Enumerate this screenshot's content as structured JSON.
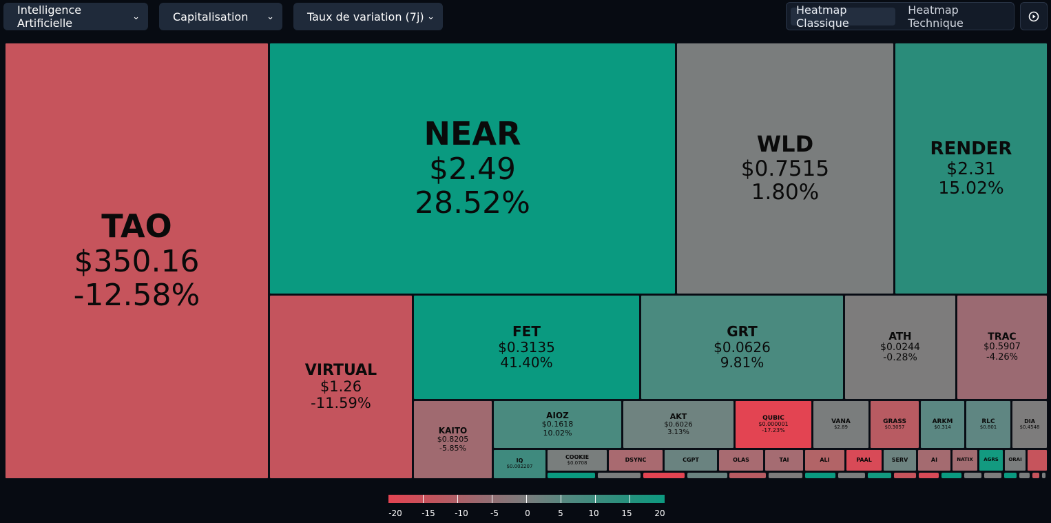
{
  "filters": {
    "category": "Intelligence Artificielle",
    "size_metric": "Capitalisation",
    "color_metric": "Taux de variation (7j)"
  },
  "view_toggle": {
    "classic": "Heatmap Classique",
    "technical": "Heatmap Technique",
    "active": "classic"
  },
  "icons": {
    "play": "play-circle-icon",
    "chevron": "chevron-down-icon"
  },
  "colors": {
    "background": "#070b12",
    "negative_strong": "#e34452",
    "negative": "#c6545c",
    "neutral": "#7a7d7d",
    "positive": "#4a8a7f",
    "positive_strong": "#0a9a80"
  },
  "tiles": [
    {
      "symbol": "TAO",
      "price": "$350.16",
      "change": "-12.58%"
    },
    {
      "symbol": "NEAR",
      "price": "$2.49",
      "change": "28.52%"
    },
    {
      "symbol": "WLD",
      "price": "$0.7515",
      "change": "1.80%"
    },
    {
      "symbol": "RENDER",
      "price": "$2.31",
      "change": "15.02%"
    },
    {
      "symbol": "VIRTUAL",
      "price": "$1.26",
      "change": "-11.59%"
    },
    {
      "symbol": "FET",
      "price": "$0.3135",
      "change": "41.40%"
    },
    {
      "symbol": "GRT",
      "price": "$0.0626",
      "change": "9.81%"
    },
    {
      "symbol": "ATH",
      "price": "$0.0244",
      "change": "-0.28%"
    },
    {
      "symbol": "TRAC",
      "price": "$0.5907",
      "change": "-4.26%"
    },
    {
      "symbol": "KAITO",
      "price": "$0.8205",
      "change": "-5.85%"
    },
    {
      "symbol": "AIOZ",
      "price": "$0.1618",
      "change": "10.02%"
    },
    {
      "symbol": "AKT",
      "price": "$0.6026",
      "change": "3.13%"
    },
    {
      "symbol": "QUBIC",
      "price": "$0.000001",
      "change": "-17.23%"
    },
    {
      "symbol": "VANA",
      "price": "$2.89",
      "change": ""
    },
    {
      "symbol": "GRASS",
      "price": "$0.3057",
      "change": ""
    },
    {
      "symbol": "ARKM",
      "price": "$0.314",
      "change": ""
    },
    {
      "symbol": "RLC",
      "price": "$0.801",
      "change": ""
    },
    {
      "symbol": "DIA",
      "price": "$0.4548",
      "change": ""
    },
    {
      "symbol": "IQ",
      "price": "$0.002207",
      "change": ""
    },
    {
      "symbol": "COOKIE",
      "price": "$0.0708",
      "change": ""
    },
    {
      "symbol": "DSYNC",
      "price": "",
      "change": ""
    },
    {
      "symbol": "CGPT",
      "price": "",
      "change": ""
    },
    {
      "symbol": "OLAS",
      "price": "",
      "change": ""
    },
    {
      "symbol": "TAI",
      "price": "",
      "change": ""
    },
    {
      "symbol": "ALI",
      "price": "",
      "change": ""
    },
    {
      "symbol": "PAAL",
      "price": "",
      "change": ""
    },
    {
      "symbol": "SERV",
      "price": "",
      "change": ""
    },
    {
      "symbol": "AI",
      "price": "",
      "change": ""
    },
    {
      "symbol": "NATIX",
      "price": "",
      "change": ""
    },
    {
      "symbol": "AGRS",
      "price": "",
      "change": ""
    },
    {
      "symbol": "ORAI",
      "price": "",
      "change": ""
    }
  ],
  "legend": {
    "ticks": [
      "-20",
      "-15",
      "-10",
      "-5",
      "0",
      "5",
      "10",
      "15",
      "20"
    ]
  }
}
